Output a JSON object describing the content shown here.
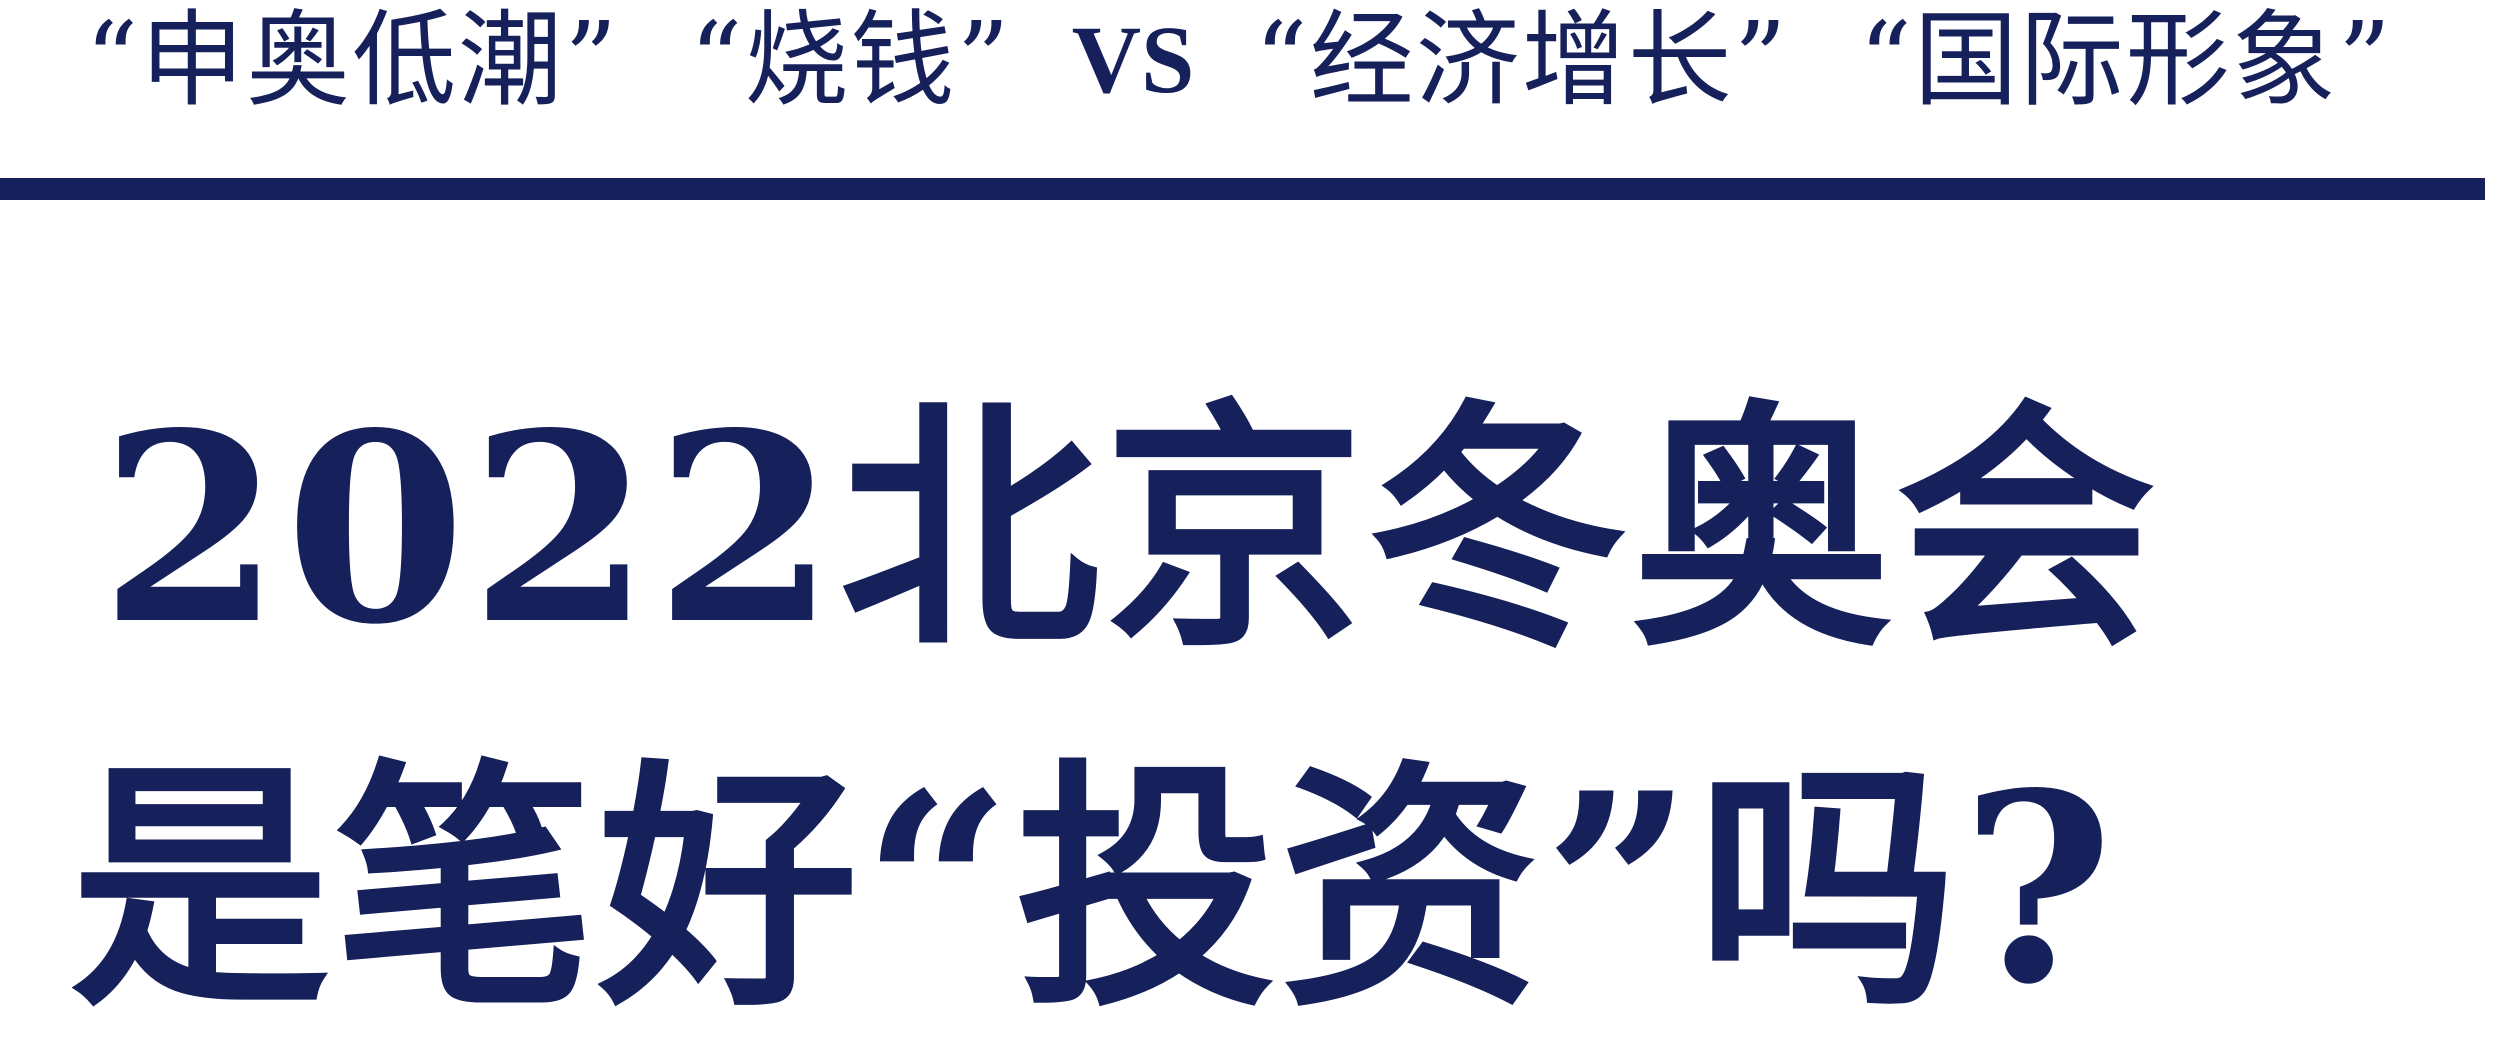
{
  "subtitle": {
    "phrase_1": "“申奥低潮”",
    "phrase_2": "“烧钱”",
    "vs": "VS",
    "phrase_3": "“经济增长”",
    "phrase_4": "“国际形象”"
  },
  "headline": {
    "line_1": "2022北京冬奥会",
    "line_2": "是笔好“投资”吗?"
  },
  "colors": {
    "primary": "#16205a",
    "background": "#ffffff"
  }
}
